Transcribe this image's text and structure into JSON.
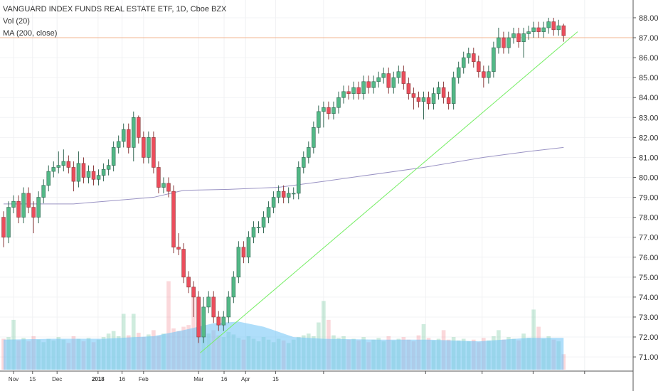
{
  "chart_data": {
    "type": "candlestick",
    "legend": [
      "VANGUARD INDEX FUNDS REAL ESTATE ETF, 1D, Cboe BZX",
      "Vol (20)",
      "MA (200, close)"
    ],
    "candles": [
      [
        78.0,
        78.3,
        76.5,
        77.0
      ],
      [
        77.0,
        78.8,
        76.7,
        78.5
      ],
      [
        78.5,
        79.1,
        78.2,
        78.8
      ],
      [
        78.8,
        79.1,
        77.7,
        78.0
      ],
      [
        78.0,
        79.5,
        77.7,
        79.2
      ],
      [
        79.2,
        79.5,
        78.2,
        78.5
      ],
      [
        78.5,
        78.8,
        77.2,
        78.0
      ],
      [
        78.0,
        79.3,
        77.7,
        79.0
      ],
      [
        79.0,
        79.9,
        78.7,
        79.6
      ],
      [
        79.6,
        80.6,
        79.3,
        80.3
      ],
      [
        80.3,
        80.8,
        80.0,
        80.5
      ],
      [
        80.5,
        81.3,
        80.2,
        80.6
      ],
      [
        80.6,
        81.4,
        80.3,
        80.8
      ],
      [
        80.8,
        81.1,
        80.2,
        80.5
      ],
      [
        80.5,
        80.8,
        79.3,
        79.8
      ],
      [
        79.8,
        81.3,
        79.5,
        80.7
      ],
      [
        80.7,
        81.0,
        79.7,
        80.0
      ],
      [
        80.0,
        80.6,
        79.7,
        80.3
      ],
      [
        80.3,
        80.6,
        79.6,
        79.9
      ],
      [
        79.9,
        80.4,
        79.6,
        80.1
      ],
      [
        80.1,
        80.7,
        79.8,
        80.4
      ],
      [
        80.4,
        80.9,
        80.1,
        80.6
      ],
      [
        80.6,
        81.8,
        80.3,
        81.5
      ],
      [
        81.5,
        82.1,
        81.2,
        81.8
      ],
      [
        81.8,
        82.7,
        81.5,
        82.4
      ],
      [
        82.4,
        82.7,
        81.2,
        81.5
      ],
      [
        81.5,
        83.3,
        80.8,
        83.0
      ],
      [
        83.0,
        83.1,
        81.7,
        82.0
      ],
      [
        82.0,
        82.3,
        80.7,
        81.0
      ],
      [
        81.0,
        82.3,
        80.7,
        82.0
      ],
      [
        82.0,
        82.3,
        80.2,
        80.5
      ],
      [
        80.5,
        80.8,
        79.2,
        79.5
      ],
      [
        79.5,
        80.0,
        79.2,
        79.7
      ],
      [
        79.7,
        80.0,
        79.0,
        79.3
      ],
      [
        79.3,
        79.6,
        76.2,
        76.5
      ],
      [
        76.5,
        77.2,
        76.1,
        76.4
      ],
      [
        76.4,
        76.7,
        74.7,
        75.0
      ],
      [
        75.0,
        75.3,
        74.2,
        74.5
      ],
      [
        74.5,
        74.8,
        73.0,
        74.0
      ],
      [
        74.0,
        74.3,
        71.7,
        72.0
      ],
      [
        72.0,
        74.0,
        71.7,
        73.5
      ],
      [
        73.5,
        74.3,
        73.2,
        74.0
      ],
      [
        74.0,
        74.3,
        72.7,
        73.0
      ],
      [
        73.0,
        73.3,
        72.3,
        72.6
      ],
      [
        72.6,
        73.3,
        72.3,
        73.0
      ],
      [
        73.0,
        74.3,
        72.7,
        74.0
      ],
      [
        74.0,
        75.3,
        73.7,
        75.0
      ],
      [
        75.0,
        76.8,
        74.7,
        76.5
      ],
      [
        76.5,
        76.8,
        75.7,
        76.0
      ],
      [
        76.0,
        77.3,
        75.7,
        77.0
      ],
      [
        77.0,
        77.8,
        76.7,
        77.5
      ],
      [
        77.5,
        77.8,
        77.2,
        77.5
      ],
      [
        77.5,
        78.3,
        77.2,
        78.0
      ],
      [
        78.0,
        78.8,
        77.7,
        78.5
      ],
      [
        78.5,
        79.3,
        78.2,
        79.0
      ],
      [
        79.0,
        79.6,
        78.7,
        79.3
      ],
      [
        79.3,
        79.6,
        78.7,
        79.0
      ],
      [
        79.0,
        79.5,
        78.7,
        79.2
      ],
      [
        79.2,
        79.5,
        78.9,
        79.2
      ],
      [
        79.2,
        80.8,
        78.9,
        80.5
      ],
      [
        80.5,
        81.3,
        80.2,
        81.0
      ],
      [
        81.0,
        81.8,
        80.7,
        81.5
      ],
      [
        81.5,
        82.8,
        81.2,
        82.5
      ],
      [
        82.5,
        83.6,
        82.2,
        83.3
      ],
      [
        83.3,
        83.8,
        82.5,
        83.5
      ],
      [
        83.5,
        83.8,
        82.9,
        83.2
      ],
      [
        83.2,
        83.8,
        82.9,
        83.5
      ],
      [
        83.5,
        84.3,
        83.2,
        84.0
      ],
      [
        84.0,
        84.6,
        83.7,
        84.3
      ],
      [
        84.3,
        84.6,
        83.9,
        84.2
      ],
      [
        84.2,
        84.8,
        83.9,
        84.5
      ],
      [
        84.5,
        84.8,
        83.9,
        84.2
      ],
      [
        84.2,
        85.1,
        83.9,
        84.8
      ],
      [
        84.8,
        85.1,
        84.2,
        84.5
      ],
      [
        84.5,
        85.1,
        84.2,
        84.8
      ],
      [
        84.8,
        85.3,
        84.5,
        85.0
      ],
      [
        85.0,
        85.5,
        84.7,
        85.2
      ],
      [
        85.2,
        85.5,
        84.2,
        84.5
      ],
      [
        84.5,
        85.3,
        84.2,
        85.0
      ],
      [
        85.0,
        85.6,
        84.7,
        85.3
      ],
      [
        85.3,
        85.6,
        84.4,
        84.7
      ],
      [
        84.7,
        85.0,
        83.9,
        84.2
      ],
      [
        84.2,
        84.5,
        83.4,
        84.0
      ],
      [
        84.0,
        84.3,
        83.5,
        83.8
      ],
      [
        83.8,
        84.3,
        82.9,
        84.0
      ],
      [
        84.0,
        84.3,
        83.4,
        83.7
      ],
      [
        83.7,
        84.5,
        83.4,
        84.2
      ],
      [
        84.2,
        84.8,
        83.9,
        84.5
      ],
      [
        84.5,
        84.8,
        83.7,
        84.0
      ],
      [
        84.0,
        84.3,
        83.4,
        83.7
      ],
      [
        83.7,
        85.3,
        83.4,
        85.0
      ],
      [
        85.0,
        85.8,
        84.7,
        85.5
      ],
      [
        85.5,
        86.3,
        85.2,
        86.0
      ],
      [
        86.0,
        86.5,
        85.7,
        86.2
      ],
      [
        86.2,
        86.5,
        85.5,
        85.8
      ],
      [
        85.8,
        86.1,
        85.0,
        85.3
      ],
      [
        85.3,
        85.6,
        84.5,
        85.0
      ],
      [
        85.0,
        85.6,
        84.7,
        85.3
      ],
      [
        85.3,
        86.8,
        85.0,
        86.5
      ],
      [
        86.5,
        87.5,
        86.2,
        87.0
      ],
      [
        87.0,
        87.3,
        86.2,
        86.5
      ],
      [
        86.5,
        87.3,
        86.2,
        87.0
      ],
      [
        87.0,
        87.5,
        86.7,
        87.2
      ],
      [
        87.2,
        87.5,
        86.5,
        86.8
      ],
      [
        86.8,
        87.5,
        86.0,
        87.2
      ],
      [
        87.2,
        87.6,
        86.9,
        87.3
      ],
      [
        87.3,
        87.8,
        87.0,
        87.5
      ],
      [
        87.5,
        87.8,
        87.0,
        87.3
      ],
      [
        87.3,
        87.8,
        87.0,
        87.5
      ],
      [
        87.5,
        88.0,
        87.2,
        87.8
      ],
      [
        87.8,
        88.0,
        87.1,
        87.4
      ],
      [
        87.4,
        87.9,
        87.1,
        87.6
      ],
      [
        87.6,
        87.7,
        86.8,
        87.1
      ]
    ],
    "volumes": [
      3.6,
      3.8,
      5.8,
      3.4,
      3.7,
      3.3,
      3.9,
      3.5,
      3.2,
      3.6,
      3.4,
      3.8,
      3.5,
      3.1,
      3.9,
      3.6,
      3.3,
      3.7,
      3.2,
      3.5,
      3.8,
      4.2,
      4.5,
      3.9,
      6.5,
      4.0,
      6.5,
      4.3,
      3.8,
      4.1,
      4.6,
      3.9,
      4.2,
      10.3,
      4.8,
      4.5,
      5.0,
      5.2,
      9.0,
      5.5,
      4.8,
      4.2,
      4.6,
      4.0,
      3.8,
      4.4,
      4.1,
      3.7,
      3.5,
      3.9,
      3.6,
      3.3,
      3.8,
      3.5,
      3.2,
      3.6,
      3.4,
      3.1,
      3.5,
      3.8,
      4.0,
      4.2,
      3.9,
      5.5,
      8.0,
      5.8,
      4.0,
      3.7,
      3.9,
      3.5,
      3.6,
      3.4,
      3.8,
      3.2,
      3.5,
      3.7,
      3.3,
      3.9,
      3.4,
      3.6,
      3.8,
      3.5,
      3.3,
      4.0,
      5.3,
      3.7,
      3.4,
      3.6,
      4.6,
      3.5,
      3.8,
      3.4,
      3.6,
      3.3,
      3.5,
      3.2,
      3.7,
      3.4,
      3.9,
      4.6,
      3.5,
      3.8,
      3.6,
      3.4,
      4.2,
      3.7,
      7.0,
      5.0,
      3.6,
      3.9,
      3.5,
      3.3,
      1.8
    ],
    "volume_lim": [
      0,
      12
    ],
    "volume_ma": {
      "x": [
        0,
        10,
        20,
        30,
        36,
        42,
        47,
        52,
        58,
        64,
        75,
        85,
        95,
        105,
        112
      ],
      "values": [
        3.5,
        3.6,
        3.6,
        3.9,
        4.6,
        5.4,
        5.6,
        5.0,
        3.8,
        3.6,
        3.5,
        3.5,
        3.3,
        3.7,
        3.7
      ]
    },
    "ma200": {
      "x": [
        0,
        14,
        30,
        36,
        45,
        55,
        64,
        84,
        96,
        105,
        112
      ],
      "values": [
        78.67,
        78.67,
        79.0,
        79.35,
        79.4,
        79.5,
        79.8,
        80.5,
        81.0,
        81.3,
        81.5
      ]
    },
    "trendline": {
      "x": [
        39.3,
        114.8
      ],
      "values": [
        71.2,
        87.3
      ]
    },
    "price_line": 87.0,
    "xlim": [
      -0.71,
      125.9
    ],
    "ylim": [
      70.29,
      88.89
    ],
    "yticks": [
      {
        "value": 71,
        "label": "71.00"
      },
      {
        "value": 72,
        "label": "72.00"
      },
      {
        "value": 73,
        "label": "73.00"
      },
      {
        "value": 74,
        "label": "74.00"
      },
      {
        "value": 75,
        "label": "75.00"
      },
      {
        "value": 76,
        "label": "76.00"
      },
      {
        "value": 77,
        "label": "77.00"
      },
      {
        "value": 78,
        "label": "78.00"
      },
      {
        "value": 79,
        "label": "79.00"
      },
      {
        "value": 80,
        "label": "80.00"
      },
      {
        "value": 81,
        "label": "81.00"
      },
      {
        "value": 82,
        "label": "82.00"
      },
      {
        "value": 83,
        "label": "83.00"
      },
      {
        "value": 84,
        "label": "84.00"
      },
      {
        "value": 85,
        "label": "85.00"
      },
      {
        "value": 86,
        "label": "86.00"
      },
      {
        "value": 87,
        "label": "87.00"
      },
      {
        "value": 88,
        "label": "88.00"
      }
    ],
    "xticks": [
      {
        "value": 2,
        "label": "Nov"
      },
      {
        "value": 5.8,
        "label": "15"
      },
      {
        "value": 10.7,
        "label": "Dec"
      },
      {
        "value": 18.9,
        "label": "2018"
      },
      {
        "value": 23.7,
        "label": "16"
      },
      {
        "value": 28,
        "label": "Feb"
      },
      {
        "value": 39,
        "label": "Mar"
      },
      {
        "value": 44.1,
        "label": "16"
      },
      {
        "value": 48.4,
        "label": "Apr"
      },
      {
        "value": 54.4,
        "label": "15"
      },
      {
        "value": 64,
        "label": null
      },
      {
        "value": 84.4,
        "label": null
      },
      {
        "value": 95.7,
        "label": null
      },
      {
        "value": 105.9,
        "label": null
      },
      {
        "value": 116.2,
        "label": null
      }
    ],
    "colors": {
      "up": "#53b987",
      "down": "#eb4d5c",
      "up_volume": "rgba(83,185,135,0.28)",
      "down_volume": "rgba(235,77,92,0.22)",
      "volume_ma": "rgba(110,195,245,0.55)",
      "ma200": "#9a93c4",
      "trendline": "#77ee66",
      "price_line": "#f3b492"
    }
  }
}
